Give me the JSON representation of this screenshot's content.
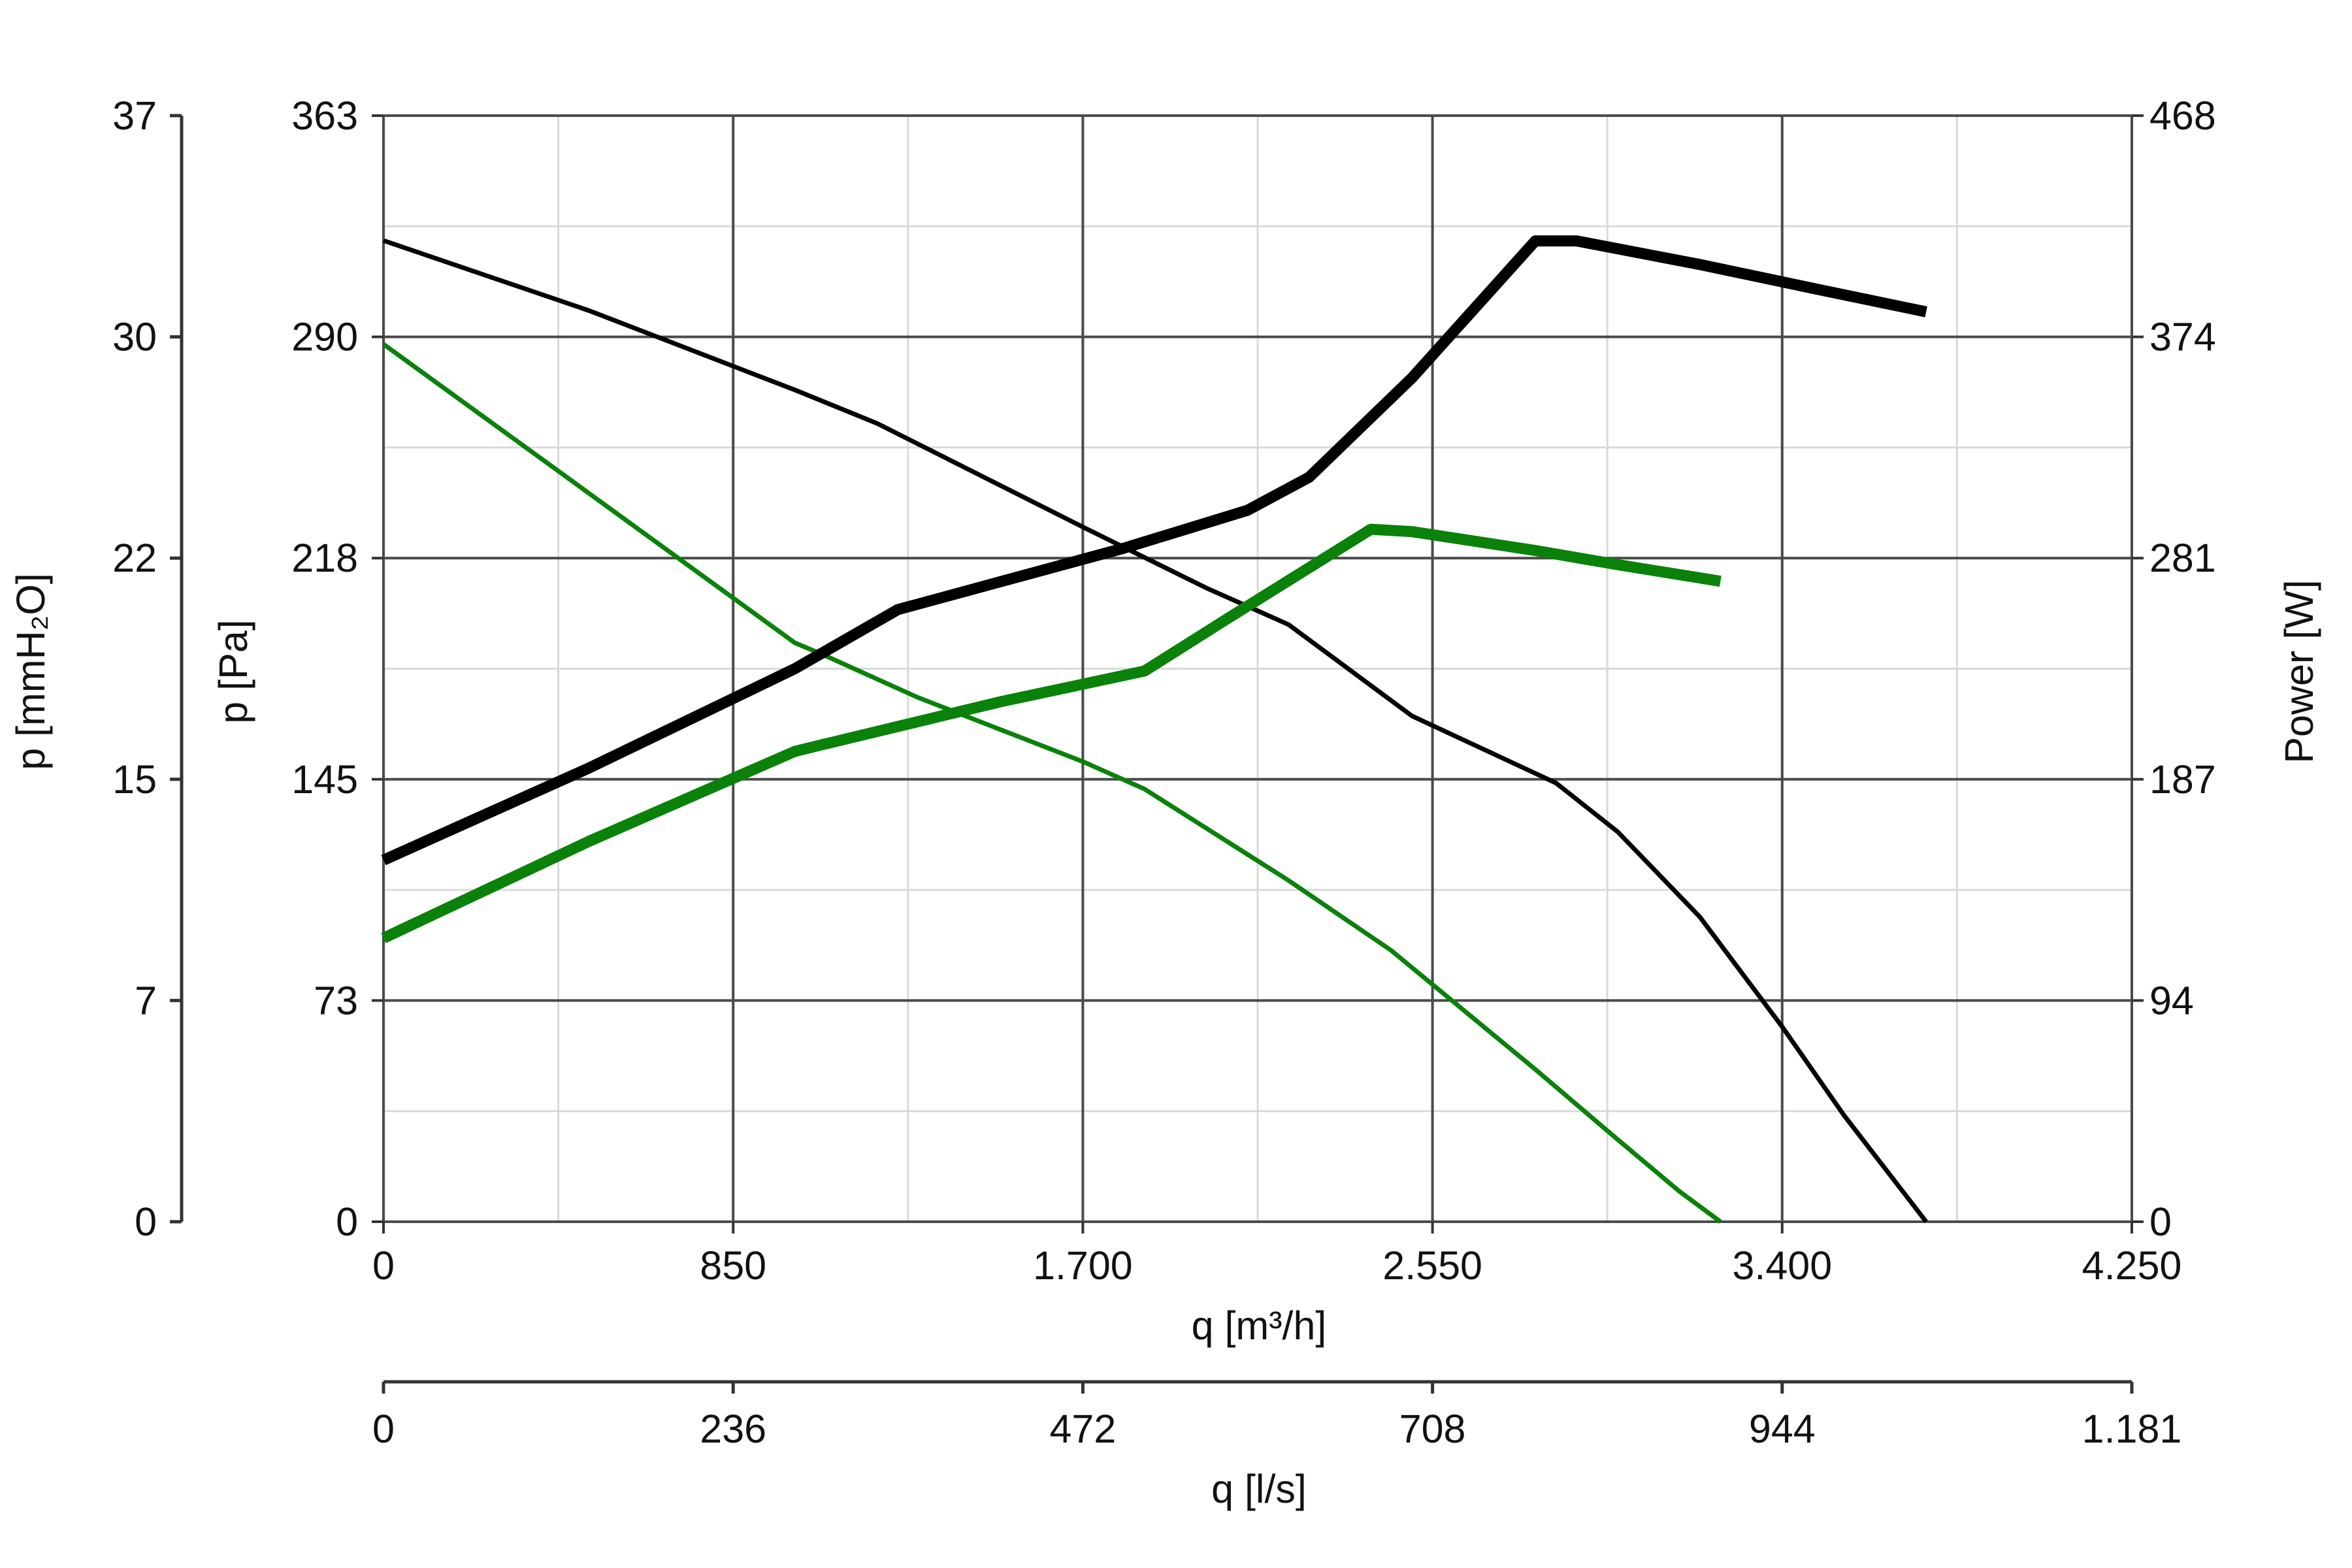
{
  "chart_data": {
    "type": "line",
    "colors": {
      "black": "#000000",
      "green": "#0a820a",
      "grid_major": "#4a4a4a",
      "grid_minor": "#d9d9d9"
    },
    "x_axis_primary": {
      "label": "q [m³/h]",
      "range": [
        0,
        4250
      ],
      "ticks": [
        0,
        850,
        1700,
        2550,
        3400,
        4250
      ],
      "tick_labels": [
        "0",
        "850",
        "1.700",
        "2.550",
        "3.400",
        "4.250"
      ]
    },
    "x_axis_secondary": {
      "label": "q [l/s]",
      "range": [
        0,
        1181
      ],
      "tick_labels": [
        "0",
        "236",
        "472",
        "708",
        "944",
        "1.181"
      ]
    },
    "y_axis_left_outer": {
      "label": "p [mmH₂O]",
      "range": [
        0,
        37
      ],
      "tick_labels": [
        "0",
        "7",
        "15",
        "22",
        "30",
        "37"
      ]
    },
    "y_axis_left_inner": {
      "label": "p [Pa]",
      "range": [
        0,
        363
      ],
      "ticks": [
        0,
        72.6,
        145.2,
        217.8,
        290.4,
        363
      ],
      "tick_labels": [
        "0",
        "73",
        "145",
        "218",
        "290",
        "363"
      ]
    },
    "y_axis_right": {
      "label": "Power [W]",
      "range": [
        0,
        468
      ],
      "tick_labels": [
        "0",
        "94",
        "187",
        "281",
        "374",
        "468"
      ]
    },
    "grid": true,
    "series": [
      {
        "kind": "pressure",
        "axis": "pa",
        "color": "black",
        "weight": "thin",
        "x": [
          0,
          500,
          1000,
          1200,
          1700,
          2000,
          2200,
          2500,
          2850,
          3000,
          3200,
          3400,
          3550,
          3750
        ],
        "y": [
          322,
          299,
          273,
          262,
          228,
          208,
          196,
          166,
          144,
          128,
          100,
          64,
          35,
          0
        ]
      },
      {
        "kind": "pressure",
        "axis": "pa",
        "color": "green",
        "weight": "thin",
        "x": [
          0,
          500,
          1000,
          1070,
          1300,
          1700,
          1850,
          2200,
          2450,
          2800,
          3000,
          3150,
          3250
        ],
        "y": [
          288,
          239,
          190,
          186,
          172,
          151,
          142,
          112,
          89,
          50,
          27,
          10,
          0
        ]
      },
      {
        "kind": "power",
        "axis": "w",
        "color": "black",
        "weight": "thick",
        "x": [
          0,
          500,
          1000,
          1250,
          1800,
          2100,
          2250,
          2500,
          2800,
          2900,
          3200,
          3500,
          3750
        ],
        "y": [
          153,
          192,
          234,
          259,
          285,
          301,
          315,
          357,
          415,
          415,
          405,
          394,
          385
        ]
      },
      {
        "kind": "power",
        "axis": "w",
        "color": "green",
        "weight": "thick",
        "x": [
          0,
          500,
          1000,
          1070,
          1500,
          1850,
          2050,
          2400,
          2500,
          2800,
          3000,
          3250
        ],
        "y": [
          120,
          161,
          199,
          202,
          220,
          233,
          255,
          293,
          292,
          284,
          278,
          271
        ]
      }
    ]
  }
}
